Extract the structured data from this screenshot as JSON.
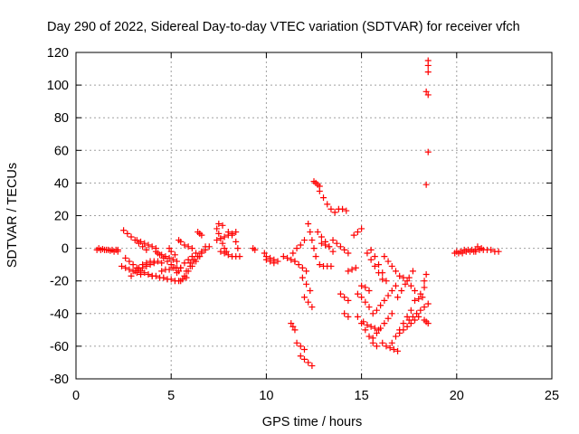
{
  "chart_data": {
    "type": "scatter",
    "title": "Day 290 of 2022, Sidereal Day-to-day VTEC variation (SDTVAR) for receiver vfch",
    "xlabel": "GPS time / hours",
    "ylabel": "SDTVAR / TECUs",
    "xlim": [
      0,
      25
    ],
    "ylim": [
      -80,
      120
    ],
    "xticks": [
      0,
      5,
      10,
      15,
      20,
      25
    ],
    "yticks": [
      -80,
      -60,
      -40,
      -20,
      0,
      20,
      40,
      60,
      80,
      100,
      120
    ],
    "grid": true,
    "legend": "none",
    "marker": "plus",
    "color": "#ff0000",
    "segments": [
      {
        "x": [
          1.1,
          1.3,
          1.5,
          1.7,
          1.9,
          2.1,
          2.2
        ],
        "y": [
          -1,
          -1,
          -1,
          -1,
          -1,
          -1,
          -1
        ]
      },
      {
        "x": [
          1.2,
          1.4,
          1.6,
          1.8,
          2.0,
          2.2
        ],
        "y": [
          0,
          -0.5,
          -1,
          -1.5,
          -2,
          -2
        ]
      },
      {
        "x": [
          2.5,
          2.7,
          2.9,
          3.1,
          3.3,
          3.5,
          3.7
        ],
        "y": [
          11,
          9,
          7,
          5,
          3,
          1,
          -1
        ]
      },
      {
        "x": [
          2.4,
          2.6,
          2.8,
          3.0,
          3.2,
          3.4
        ],
        "y": [
          -11,
          -12,
          -13,
          -14,
          -15,
          -16
        ]
      },
      {
        "x": [
          2.6,
          2.8,
          3.0,
          3.2,
          3.4,
          3.6,
          3.8,
          4.0
        ],
        "y": [
          -6,
          -8,
          -10,
          -12,
          -14,
          -15,
          -16,
          -17
        ]
      },
      {
        "x": [
          2.9,
          3.1,
          3.3,
          3.5,
          3.7,
          3.9,
          4.1,
          4.3,
          4.5
        ],
        "y": [
          -17,
          -14,
          -12,
          -10,
          -9,
          -8,
          -8,
          -8,
          -9
        ]
      },
      {
        "x": [
          3.2,
          3.4,
          3.6,
          3.8,
          4.0,
          4.2
        ],
        "y": [
          5,
          4,
          3,
          2,
          1,
          0
        ]
      },
      {
        "x": [
          3.3,
          3.5,
          3.7,
          3.9,
          4.1
        ],
        "y": [
          -13,
          -12,
          -11,
          -10,
          -9
        ]
      },
      {
        "x": [
          4.0,
          4.2,
          4.4,
          4.6,
          4.8,
          5.0,
          5.2,
          5.4,
          5.6,
          5.8
        ],
        "y": [
          -17,
          -17,
          -18,
          -18,
          -19,
          -19,
          -20,
          -20,
          -19,
          -18
        ]
      },
      {
        "x": [
          4.2,
          4.4,
          4.6,
          4.8,
          5.0,
          5.2,
          5.4
        ],
        "y": [
          -2,
          -4,
          -6,
          -8,
          -10,
          -12,
          -14
        ]
      },
      {
        "x": [
          4.3,
          4.5,
          4.7,
          4.9,
          5.1,
          5.3
        ],
        "y": [
          -3,
          -4,
          -5,
          -6,
          -7,
          -8
        ]
      },
      {
        "x": [
          4.5,
          4.7,
          4.9,
          5.1,
          5.3,
          5.5
        ],
        "y": [
          -14,
          -13,
          -13,
          -12,
          -12,
          -12
        ]
      },
      {
        "x": [
          4.9,
          5.0,
          5.2
        ],
        "y": [
          0,
          -2,
          -4
        ]
      },
      {
        "x": [
          5.3,
          5.5,
          5.7,
          5.9,
          6.1,
          6.3
        ],
        "y": [
          -15,
          -12,
          -9,
          -7,
          -5,
          -3
        ]
      },
      {
        "x": [
          5.5,
          5.7,
          5.9,
          6.1,
          6.3,
          6.5
        ],
        "y": [
          -20,
          -17,
          -14,
          -11,
          -8,
          -5
        ]
      },
      {
        "x": [
          5.8,
          6.0,
          6.2,
          6.4,
          6.6,
          6.8
        ],
        "y": [
          -14,
          -11,
          -8,
          -5,
          -2,
          1
        ]
      },
      {
        "x": [
          6.0,
          6.2,
          6.4,
          6.6,
          6.8,
          7.0
        ],
        "y": [
          -9,
          -7,
          -5,
          -3,
          -1,
          1
        ]
      },
      {
        "x": [
          5.7,
          5.9,
          6.1
        ],
        "y": [
          2,
          1,
          0
        ]
      },
      {
        "x": [
          5.4,
          5.5
        ],
        "y": [
          5,
          4
        ]
      },
      {
        "x": [
          6.4,
          6.5,
          6.6
        ],
        "y": [
          10,
          9,
          8
        ]
      },
      {
        "x": [
          7.4,
          7.5,
          7.6,
          7.7,
          7.8,
          7.9
        ],
        "y": [
          12,
          9,
          6,
          3,
          0,
          -2
        ]
      },
      {
        "x": [
          7.4,
          7.6,
          7.8,
          8.0,
          8.2,
          8.4
        ],
        "y": [
          5,
          6,
          7,
          8,
          9,
          10
        ]
      },
      {
        "x": [
          7.6,
          7.8,
          8.0,
          8.2,
          8.4,
          8.6
        ],
        "y": [
          -2,
          -3,
          -4,
          -5,
          -5,
          -5
        ]
      },
      {
        "x": [
          8.0,
          8.2,
          8.4,
          8.5
        ],
        "y": [
          10,
          8,
          4,
          0
        ]
      },
      {
        "x": [
          7.5,
          7.7
        ],
        "y": [
          15,
          14
        ]
      },
      {
        "x": [
          9.3,
          9.4
        ],
        "y": [
          0,
          -1
        ]
      },
      {
        "x": [
          9.9,
          10.0,
          10.2,
          10.4,
          10.6
        ],
        "y": [
          -3,
          -5,
          -6,
          -7,
          -8
        ]
      },
      {
        "x": [
          10.0,
          10.2,
          10.4
        ],
        "y": [
          -7,
          -8,
          -9
        ]
      },
      {
        "x": [
          10.9,
          11.1,
          11.3,
          11.5
        ],
        "y": [
          -5,
          -6,
          -7,
          -8
        ]
      },
      {
        "x": [
          11.4,
          11.6,
          11.8,
          12.0
        ],
        "y": [
          -3,
          0,
          2,
          5
        ]
      },
      {
        "x": [
          11.5,
          11.7,
          11.9,
          12.1
        ],
        "y": [
          -8,
          -10,
          -12,
          -14
        ]
      },
      {
        "x": [
          11.3,
          11.4,
          11.5
        ],
        "y": [
          -46,
          -48,
          -50
        ]
      },
      {
        "x": [
          11.6,
          11.8,
          12.0
        ],
        "y": [
          -58,
          -60,
          -62
        ]
      },
      {
        "x": [
          11.8,
          12.0,
          12.2,
          12.4
        ],
        "y": [
          -66,
          -68,
          -70,
          -72
        ]
      },
      {
        "x": [
          11.9,
          12.1,
          12.3
        ],
        "y": [
          -18,
          -22,
          -26
        ]
      },
      {
        "x": [
          12.0,
          12.2,
          12.4
        ],
        "y": [
          -30,
          -33,
          -36
        ]
      },
      {
        "x": [
          12.2,
          12.3,
          12.4,
          12.5,
          12.6
        ],
        "y": [
          15,
          10,
          5,
          0,
          -5
        ]
      },
      {
        "x": [
          12.5,
          12.6,
          12.7,
          12.8
        ],
        "y": [
          41,
          40,
          39,
          38
        ]
      },
      {
        "x": [
          12.8,
          13.0,
          13.2,
          13.4,
          13.6
        ],
        "y": [
          35,
          31,
          27,
          24,
          22
        ]
      },
      {
        "x": [
          12.7,
          12.9,
          13.1,
          13.3,
          13.5
        ],
        "y": [
          10,
          7,
          4,
          1,
          -2
        ]
      },
      {
        "x": [
          12.8,
          13.0,
          13.2,
          13.4
        ],
        "y": [
          -10,
          -11,
          -11,
          -11
        ]
      },
      {
        "x": [
          12.9,
          13.1,
          13.3
        ],
        "y": [
          3,
          2,
          1
        ]
      },
      {
        "x": [
          13.5,
          13.7,
          13.9,
          14.1,
          14.3
        ],
        "y": [
          5,
          3,
          1,
          -1,
          -3
        ]
      },
      {
        "x": [
          13.8,
          14.0,
          14.2
        ],
        "y": [
          24,
          24,
          23
        ]
      },
      {
        "x": [
          13.9,
          14.1,
          14.3
        ],
        "y": [
          -28,
          -30,
          -32
        ]
      },
      {
        "x": [
          14.1,
          14.3
        ],
        "y": [
          -40,
          -42
        ]
      },
      {
        "x": [
          14.3,
          14.5,
          14.7
        ],
        "y": [
          -14,
          -13,
          -12
        ]
      },
      {
        "x": [
          14.6,
          14.8,
          15.0
        ],
        "y": [
          8,
          10,
          12
        ]
      },
      {
        "x": [
          14.8,
          15.0,
          15.2,
          15.4,
          15.6
        ],
        "y": [
          -28,
          -30,
          -33,
          -36,
          -40
        ]
      },
      {
        "x": [
          15.0,
          15.2,
          15.4
        ],
        "y": [
          -23,
          -24,
          -26
        ]
      },
      {
        "x": [
          14.8,
          15.0,
          15.2,
          15.4,
          15.6,
          15.8
        ],
        "y": [
          -42,
          -46,
          -50,
          -54,
          -58,
          -60
        ]
      },
      {
        "x": [
          15.1,
          15.3,
          15.5,
          15.7,
          15.9
        ],
        "y": [
          -45,
          -47,
          -48,
          -49,
          -50
        ]
      },
      {
        "x": [
          15.3,
          15.5,
          15.7,
          15.9,
          16.1
        ],
        "y": [
          -3,
          -7,
          -11,
          -15,
          -19
        ]
      },
      {
        "x": [
          15.5,
          15.7,
          15.9,
          16.1,
          16.3
        ],
        "y": [
          -1,
          -5,
          -10,
          -15,
          -20
        ]
      },
      {
        "x": [
          15.6,
          15.8,
          16.0,
          16.2,
          16.4,
          16.6
        ],
        "y": [
          -55,
          -52,
          -49,
          -46,
          -43,
          -40
        ]
      },
      {
        "x": [
          15.8,
          16.0,
          16.2,
          16.4,
          16.6,
          16.8
        ],
        "y": [
          -38,
          -35,
          -32,
          -29,
          -26,
          -23
        ]
      },
      {
        "x": [
          16.2,
          16.4,
          16.6,
          16.8,
          17.0
        ],
        "y": [
          -5,
          -8,
          -11,
          -14,
          -17
        ]
      },
      {
        "x": [
          16.1,
          16.3,
          16.5,
          16.7,
          16.9
        ],
        "y": [
          -58,
          -60,
          -61,
          -62,
          -63
        ]
      },
      {
        "x": [
          16.6,
          16.8,
          17.0,
          17.2,
          17.4,
          17.6
        ],
        "y": [
          -58,
          -54,
          -50,
          -46,
          -42,
          -38
        ]
      },
      {
        "x": [
          16.9,
          17.1,
          17.3,
          17.5,
          17.7
        ],
        "y": [
          -30,
          -26,
          -22,
          -18,
          -14
        ]
      },
      {
        "x": [
          17.0,
          17.2,
          17.4,
          17.6,
          17.8,
          18.0
        ],
        "y": [
          -52,
          -50,
          -48,
          -46,
          -44,
          -42
        ]
      },
      {
        "x": [
          17.2,
          17.4,
          17.6,
          17.8
        ],
        "y": [
          -18,
          -20,
          -23,
          -26
        ]
      },
      {
        "x": [
          17.5,
          17.7,
          17.9,
          18.1,
          18.3,
          18.5
        ],
        "y": [
          -44,
          -42,
          -40,
          -38,
          -36,
          -34
        ]
      },
      {
        "x": [
          17.8,
          18.0,
          18.2
        ],
        "y": [
          -32,
          -31,
          -30
        ]
      },
      {
        "x": [
          18.1,
          18.3
        ],
        "y": [
          -28,
          -24
        ]
      },
      {
        "x": [
          18.3,
          18.4
        ],
        "y": [
          -20,
          -16
        ]
      },
      {
        "x": [
          18.3,
          18.4,
          18.5
        ],
        "y": [
          -44,
          -45,
          -46
        ]
      },
      {
        "x": [
          18.5,
          18.5,
          18.5
        ],
        "y": [
          115,
          112,
          108
        ]
      },
      {
        "x": [
          18.4,
          18.5
        ],
        "y": [
          96,
          94
        ]
      },
      {
        "x": [
          18.5
        ],
        "y": [
          59
        ]
      },
      {
        "x": [
          18.4
        ],
        "y": [
          39
        ]
      },
      {
        "x": [
          19.9,
          20.1,
          20.3,
          20.5,
          20.7,
          20.9
        ],
        "y": [
          -3,
          -3,
          -3,
          -2,
          -2,
          -2
        ]
      },
      {
        "x": [
          20.0,
          20.2,
          20.4,
          20.6,
          20.8,
          21.0
        ],
        "y": [
          -2,
          -2,
          -1,
          -1,
          -1,
          -1
        ]
      },
      {
        "x": [
          21.0,
          21.2,
          21.4,
          21.6,
          21.8,
          22.0,
          22.2
        ],
        "y": [
          -2,
          -1,
          -1,
          -1,
          -1,
          -2,
          -2
        ]
      },
      {
        "x": [
          21.1,
          21.3
        ],
        "y": [
          1,
          0
        ]
      }
    ]
  }
}
